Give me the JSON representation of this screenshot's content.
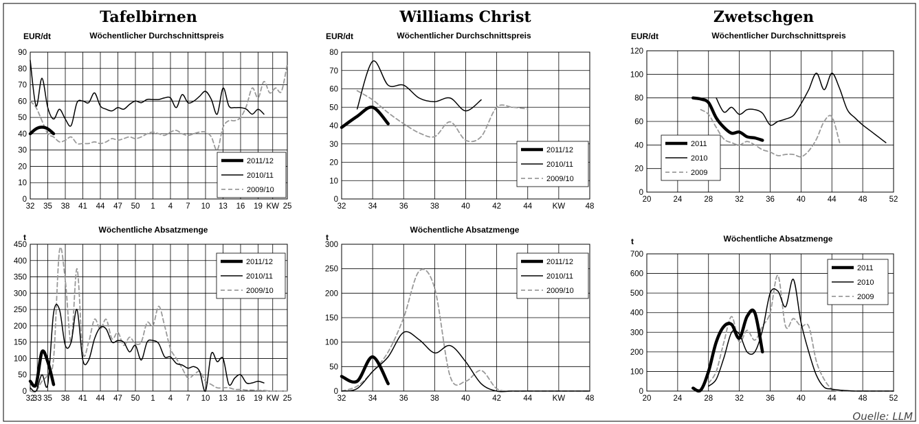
{
  "source": "Ouelle: LLM",
  "chart_data": [
    {
      "id": "tb_price",
      "type": "line",
      "title": "Tafelbirnen",
      "subtitle": "Wöchentlicher Durchschnittspreis",
      "ylabel": "EUR/dt",
      "ylim": [
        0,
        90
      ],
      "yticks": [
        0,
        10,
        20,
        30,
        40,
        50,
        60,
        70,
        80,
        90
      ],
      "xlim": [
        0,
        44
      ],
      "xtick_labels": [
        "32",
        "35",
        "38",
        "41",
        "44",
        "47",
        "50",
        "1",
        "4",
        "7",
        "10",
        "13",
        "16",
        "19",
        "KW",
        "25"
      ],
      "xtick_positions": [
        0,
        3,
        6,
        9,
        12,
        15,
        18,
        21,
        24,
        27,
        30,
        33,
        36,
        39,
        41.5,
        44
      ],
      "x_note": "week index from KW 32",
      "legend": [
        "2011/12",
        "2010/11",
        "2009/10"
      ],
      "legend_pos": "bottom-right",
      "series": [
        {
          "name": "2011/12",
          "style": "thick",
          "x": [
            0,
            1,
            2,
            3,
            4
          ],
          "y": [
            40,
            43,
            44,
            43,
            40
          ]
        },
        {
          "name": "2010/11",
          "style": "solid",
          "x": [
            0,
            1,
            2,
            3,
            4,
            5,
            6,
            7,
            8,
            9,
            10,
            11,
            12,
            13,
            14,
            15,
            16,
            17,
            18,
            19,
            20,
            21,
            22,
            23,
            24,
            25,
            26,
            27,
            28,
            29,
            30,
            31,
            32,
            33,
            34,
            35,
            36,
            37,
            38,
            39,
            40
          ],
          "y": [
            85,
            57,
            74,
            56,
            49,
            55,
            49,
            45,
            59,
            60,
            59,
            65,
            57,
            55,
            54,
            56,
            55,
            58,
            60,
            59,
            61,
            61,
            61,
            62,
            62,
            56,
            64,
            59,
            60,
            63,
            66,
            61,
            52,
            68,
            57,
            56,
            56,
            55,
            52,
            55,
            52
          ]
        },
        {
          "name": "2009/10",
          "style": "dash",
          "x": [
            0,
            1,
            2,
            3,
            4,
            5,
            6,
            7,
            8,
            9,
            10,
            11,
            12,
            13,
            14,
            15,
            16,
            17,
            18,
            19,
            20,
            21,
            22,
            23,
            24,
            25,
            26,
            27,
            28,
            29,
            30,
            31,
            32,
            33,
            34,
            35,
            36,
            37,
            38,
            39,
            40,
            41,
            42,
            43,
            44
          ],
          "y": [
            60,
            56,
            48,
            40,
            38,
            35,
            36,
            38,
            34,
            34,
            34,
            35,
            34,
            35,
            37,
            36,
            37,
            38,
            37,
            38,
            40,
            41,
            40,
            39,
            41,
            42,
            40,
            39,
            40,
            41,
            41,
            38,
            30,
            44,
            48,
            48,
            50,
            57,
            68,
            62,
            72,
            65,
            68,
            66,
            83
          ]
        }
      ]
    },
    {
      "id": "wc_price",
      "type": "line",
      "title": "Williams Christ",
      "subtitle": "Wöchentlicher Durchschnittspreis",
      "ylabel": "EUR/dt",
      "ylim": [
        0,
        80
      ],
      "yticks": [
        0,
        10,
        20,
        30,
        40,
        50,
        60,
        70,
        80
      ],
      "xlim": [
        32,
        48
      ],
      "xtick_labels": [
        "32",
        "34",
        "36",
        "38",
        "40",
        "42",
        "44",
        "KW",
        "48"
      ],
      "xtick_positions": [
        32,
        34,
        36,
        38,
        40,
        42,
        44,
        46,
        48
      ],
      "legend": [
        "2011/12",
        "2010/11",
        "2009/10"
      ],
      "legend_pos": "bottom-right",
      "series": [
        {
          "name": "2011/12",
          "style": "thick",
          "x": [
            32,
            33,
            34,
            35
          ],
          "y": [
            39,
            45,
            50,
            41
          ]
        },
        {
          "name": "2010/11",
          "style": "solid",
          "x": [
            33,
            34,
            35,
            36,
            37,
            38,
            39,
            40,
            41
          ],
          "y": [
            49,
            75,
            62,
            62,
            55,
            53,
            55,
            48,
            54
          ]
        },
        {
          "name": "2009/10",
          "style": "dash",
          "x": [
            33,
            34,
            35,
            36,
            37,
            38,
            39,
            40,
            41,
            42,
            43,
            44
          ],
          "y": [
            59,
            54,
            47,
            41,
            36,
            34,
            42,
            32,
            34,
            50,
            50,
            49
          ]
        }
      ]
    },
    {
      "id": "zw_price",
      "type": "line",
      "title": "Zwetschgen",
      "subtitle": "Wöchentlicher Durchschnittspreis",
      "ylabel": "EUR/dt",
      "ylim": [
        0,
        120
      ],
      "yticks": [
        0,
        20,
        40,
        60,
        80,
        100,
        120
      ],
      "xlim": [
        20,
        52
      ],
      "xtick_labels": [
        "20",
        "24",
        "28",
        "32",
        "36",
        "40",
        "44",
        "48",
        "52"
      ],
      "xtick_positions": [
        20,
        24,
        28,
        32,
        36,
        40,
        44,
        48,
        52
      ],
      "legend": [
        "2011",
        "2010",
        "2009"
      ],
      "legend_pos": "bottom-left",
      "series": [
        {
          "name": "2011",
          "style": "thick",
          "x": [
            26,
            27,
            28,
            29,
            30,
            31,
            32,
            33,
            34,
            35
          ],
          "y": [
            80,
            79,
            76,
            63,
            55,
            50,
            51,
            47,
            46,
            44
          ]
        },
        {
          "name": "2010",
          "style": "solid",
          "x": [
            29,
            30,
            31,
            32,
            33,
            34,
            35,
            36,
            37,
            38,
            39,
            40,
            41,
            42,
            43,
            44,
            45,
            46,
            47,
            48,
            49,
            50,
            51
          ],
          "y": [
            80,
            68,
            72,
            66,
            70,
            70,
            67,
            57,
            60,
            62,
            65,
            75,
            87,
            101,
            87,
            101,
            88,
            70,
            63,
            57,
            52,
            47,
            42
          ]
        },
        {
          "name": "2009",
          "style": "dash",
          "x": [
            27,
            28,
            29,
            30,
            31,
            32,
            33,
            34,
            35,
            36,
            37,
            38,
            39,
            40,
            41,
            42,
            43,
            44,
            45
          ],
          "y": [
            70,
            66,
            55,
            45,
            42,
            40,
            43,
            40,
            36,
            34,
            31,
            32,
            32,
            30,
            35,
            45,
            60,
            64,
            42
          ]
        }
      ]
    },
    {
      "id": "tb_vol",
      "type": "line",
      "subtitle": "Wöchentliche Absatzmenge",
      "ylabel": "t",
      "ylim": [
        0,
        450
      ],
      "yticks": [
        0,
        50,
        100,
        150,
        200,
        250,
        300,
        350,
        400,
        450
      ],
      "xlim": [
        0,
        44
      ],
      "xtick_labels": [
        "32",
        "33",
        "35",
        "38",
        "41",
        "44",
        "47",
        "50",
        "1",
        "4",
        "7",
        "10",
        "13",
        "16",
        "19",
        "KW",
        "25"
      ],
      "xtick_positions": [
        0,
        1.2,
        3,
        6,
        9,
        12,
        15,
        18,
        21,
        24,
        27,
        30,
        33,
        36,
        39,
        41.5,
        44
      ],
      "legend": [
        "2011/12",
        "2010/11",
        "2009/10"
      ],
      "legend_pos": "top-right",
      "series": [
        {
          "name": "2011/12",
          "style": "thick",
          "x": [
            0,
            1,
            2,
            3,
            4
          ],
          "y": [
            30,
            20,
            120,
            90,
            20
          ]
        },
        {
          "name": "2010/11",
          "style": "solid",
          "x": [
            0,
            1,
            2,
            3,
            4,
            5,
            6,
            7,
            8,
            9,
            10,
            11,
            12,
            13,
            14,
            15,
            16,
            17,
            18,
            19,
            20,
            21,
            22,
            23,
            24,
            25,
            26,
            27,
            28,
            29,
            30,
            31,
            32,
            33,
            34,
            35,
            36,
            37,
            38,
            39,
            40
          ],
          "y": [
            10,
            0,
            50,
            20,
            240,
            250,
            140,
            150,
            250,
            95,
            95,
            160,
            195,
            190,
            150,
            155,
            150,
            120,
            140,
            95,
            150,
            155,
            145,
            105,
            105,
            85,
            80,
            70,
            75,
            60,
            0,
            115,
            90,
            100,
            20,
            40,
            50,
            25,
            25,
            30,
            25
          ]
        },
        {
          "name": "2009/10",
          "style": "dash",
          "x": [
            0,
            1,
            2,
            3,
            4,
            5,
            6,
            7,
            8,
            9,
            10,
            11,
            12,
            13,
            14,
            15,
            16,
            17,
            18,
            19,
            20,
            21,
            22,
            23,
            24,
            25,
            26,
            27,
            28,
            29,
            30,
            31,
            32,
            33,
            34,
            35,
            36,
            37,
            38,
            39,
            40,
            41,
            42,
            43,
            44
          ],
          "y": [
            0,
            0,
            30,
            50,
            100,
            430,
            340,
            150,
            375,
            120,
            150,
            220,
            190,
            220,
            160,
            180,
            140,
            165,
            145,
            150,
            210,
            200,
            260,
            200,
            130,
            100,
            70,
            40,
            50,
            60,
            30,
            20,
            10,
            10,
            10,
            5,
            5,
            3,
            3,
            2,
            2,
            0,
            0,
            0,
            0
          ]
        }
      ]
    },
    {
      "id": "wc_vol",
      "type": "line",
      "subtitle": "Wöchentliche Absatzmenge",
      "ylabel": "t",
      "ylim": [
        0,
        300
      ],
      "yticks": [
        0,
        50,
        100,
        150,
        200,
        250,
        300
      ],
      "xlim": [
        32,
        48
      ],
      "xtick_labels": [
        "32",
        "34",
        "36",
        "38",
        "40",
        "42",
        "44",
        "KW",
        "48"
      ],
      "xtick_positions": [
        32,
        34,
        36,
        38,
        40,
        42,
        44,
        46,
        48
      ],
      "legend": [
        "2011/12",
        "2010/11",
        "2009/10"
      ],
      "legend_pos": "top-right",
      "series": [
        {
          "name": "2011/12",
          "style": "thick",
          "x": [
            32,
            33,
            34,
            35
          ],
          "y": [
            30,
            20,
            70,
            15
          ]
        },
        {
          "name": "2010/11",
          "style": "solid",
          "x": [
            32,
            33,
            34,
            35,
            36,
            37,
            38,
            39,
            40,
            41,
            42,
            43,
            44,
            45,
            46,
            47,
            48
          ],
          "y": [
            0,
            5,
            40,
            70,
            120,
            105,
            78,
            93,
            60,
            15,
            0,
            0,
            0,
            0,
            0,
            0,
            0
          ]
        },
        {
          "name": "2009/10",
          "style": "dash",
          "x": [
            32,
            33,
            34,
            35,
            36,
            37,
            38,
            39,
            40,
            41,
            42,
            43,
            44,
            45,
            46,
            47,
            48
          ],
          "y": [
            0,
            10,
            40,
            80,
            150,
            245,
            210,
            30,
            20,
            42,
            5,
            0,
            0,
            0,
            0,
            0,
            0
          ]
        }
      ]
    },
    {
      "id": "zw_vol",
      "type": "line",
      "subtitle": "Wöchentliche Absatzmenge",
      "ylabel": "t",
      "ylim": [
        0,
        700
      ],
      "yticks": [
        0,
        100,
        200,
        300,
        400,
        500,
        600,
        700
      ],
      "xlim": [
        20,
        52
      ],
      "xtick_labels": [
        "20",
        "24",
        "28",
        "32",
        "36",
        "40",
        "44",
        "48",
        "52"
      ],
      "xtick_positions": [
        20,
        24,
        28,
        32,
        36,
        40,
        44,
        48,
        52
      ],
      "legend": [
        "2011",
        "2010",
        "2009"
      ],
      "legend_pos": "top-right",
      "series": [
        {
          "name": "2011",
          "style": "thick",
          "x": [
            26,
            27,
            28,
            29,
            30,
            31,
            32,
            33,
            34,
            35
          ],
          "y": [
            15,
            5,
            100,
            250,
            330,
            340,
            270,
            380,
            400,
            200
          ]
        },
        {
          "name": "2010",
          "style": "solid",
          "x": [
            28,
            29,
            30,
            31,
            32,
            33,
            34,
            35,
            36,
            37,
            38,
            39,
            40,
            41,
            42,
            43,
            44,
            45,
            46,
            47,
            48,
            49,
            50,
            51,
            52
          ],
          "y": [
            25,
            60,
            170,
            300,
            290,
            200,
            200,
            310,
            500,
            510,
            430,
            570,
            350,
            200,
            80,
            20,
            10,
            5,
            2,
            0,
            0,
            0,
            0,
            0,
            0
          ]
        },
        {
          "name": "2009",
          "style": "dash",
          "x": [
            28,
            29,
            30,
            31,
            32,
            33,
            34,
            35,
            36,
            37,
            38,
            39,
            40,
            41,
            42,
            43,
            44,
            45,
            46,
            47,
            48,
            49,
            50,
            51,
            52
          ],
          "y": [
            40,
            100,
            250,
            380,
            250,
            310,
            260,
            330,
            400,
            590,
            330,
            370,
            330,
            330,
            150,
            60,
            10,
            0,
            0,
            0,
            0,
            0,
            0,
            0,
            0
          ]
        }
      ]
    }
  ]
}
